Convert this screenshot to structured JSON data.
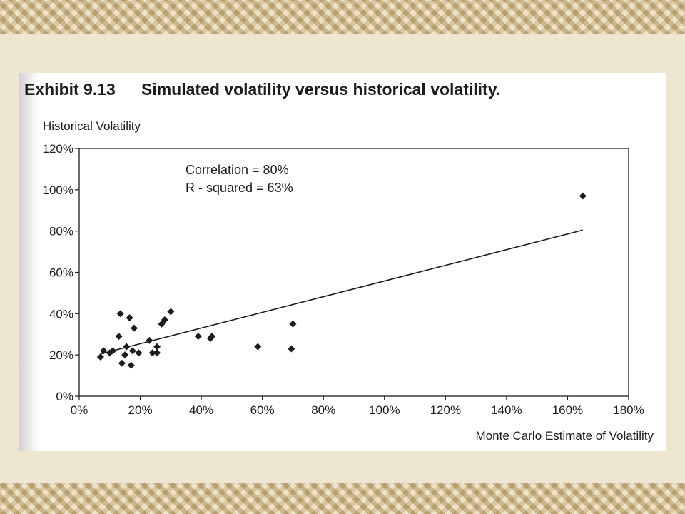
{
  "exhibit": {
    "number": "Exhibit 9.13",
    "title": "Simulated volatility versus historical volatility."
  },
  "chart_data": {
    "type": "scatter",
    "xlabel": "Monte Carlo Estimate of Volatility",
    "ylabel": "Historical Volatility",
    "xlim": [
      0,
      180
    ],
    "ylim": [
      0,
      120
    ],
    "x_ticks": [
      "0%",
      "20%",
      "40%",
      "60%",
      "80%",
      "100%",
      "120%",
      "140%",
      "160%",
      "180%"
    ],
    "y_ticks": [
      "0%",
      "20%",
      "40%",
      "60%",
      "80%",
      "100%",
      "120%"
    ],
    "annotations": [
      "Correlation = 80%",
      "R - squared = 63%"
    ],
    "trendline": {
      "x": [
        7,
        165
      ],
      "y": [
        20.5,
        80.5
      ]
    },
    "series": [
      {
        "points": [
          [
            7,
            19
          ],
          [
            8,
            22
          ],
          [
            10,
            21
          ],
          [
            11,
            22
          ],
          [
            13,
            29
          ],
          [
            13.5,
            40
          ],
          [
            14,
            16
          ],
          [
            15,
            20
          ],
          [
            15.5,
            24
          ],
          [
            16.5,
            38
          ],
          [
            17,
            15
          ],
          [
            17.5,
            22
          ],
          [
            18,
            33
          ],
          [
            19.5,
            21
          ],
          [
            23,
            27
          ],
          [
            24,
            21
          ],
          [
            25.5,
            24
          ],
          [
            25.5,
            21
          ],
          [
            27,
            35
          ],
          [
            28,
            37
          ],
          [
            30,
            41
          ],
          [
            39,
            29
          ],
          [
            43,
            28
          ],
          [
            43.5,
            29
          ],
          [
            58.5,
            24
          ],
          [
            69.5,
            23
          ],
          [
            70,
            35
          ],
          [
            165,
            97
          ]
        ]
      }
    ],
    "grid": false
  },
  "colors": {
    "ink": "#1c1c1c",
    "paper": "#ffffff",
    "border": "#e3d2ae"
  }
}
